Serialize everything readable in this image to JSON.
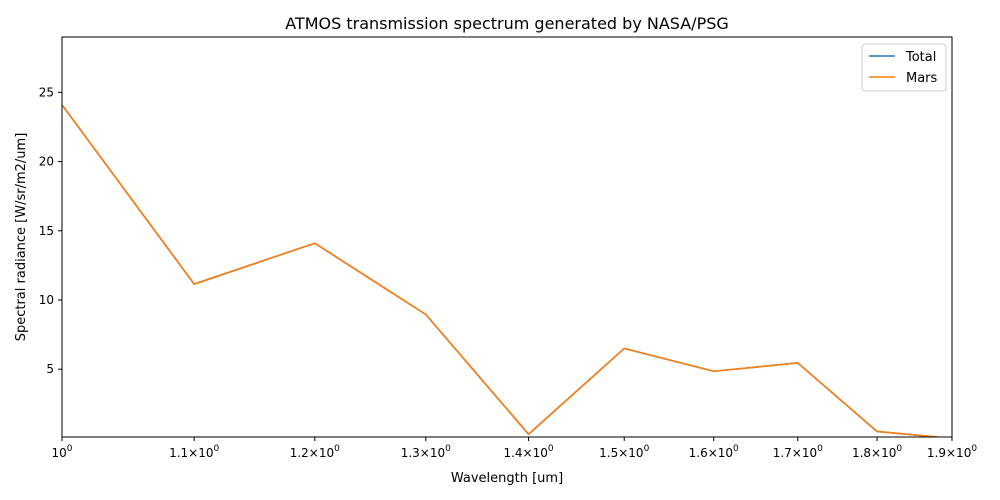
{
  "chart_data": {
    "type": "line",
    "title": "ATMOS transmission spectrum generated by NASA/PSG",
    "xlabel": "Wavelength [um]",
    "ylabel": "Spectral radiance [W/sr/m2/um]",
    "xscale": "log",
    "xlim": [
      1.0,
      1.9
    ],
    "ylim": [
      0.1,
      29
    ],
    "x_ticks": [
      {
        "value": 1.0,
        "mantissa": "",
        "base": "10",
        "exp": "0"
      },
      {
        "value": 1.1,
        "mantissa": "1.1",
        "base": "10",
        "exp": "0"
      },
      {
        "value": 1.2,
        "mantissa": "1.2",
        "base": "10",
        "exp": "0"
      },
      {
        "value": 1.3,
        "mantissa": "1.3",
        "base": "10",
        "exp": "0"
      },
      {
        "value": 1.4,
        "mantissa": "1.4",
        "base": "10",
        "exp": "0"
      },
      {
        "value": 1.5,
        "mantissa": "1.5",
        "base": "10",
        "exp": "0"
      },
      {
        "value": 1.6,
        "mantissa": "1.6",
        "base": "10",
        "exp": "0"
      },
      {
        "value": 1.7,
        "mantissa": "1.7",
        "base": "10",
        "exp": "0"
      },
      {
        "value": 1.8,
        "mantissa": "1.8",
        "base": "10",
        "exp": "0"
      },
      {
        "value": 1.9,
        "mantissa": "1.9",
        "base": "10",
        "exp": "0"
      }
    ],
    "y_ticks": [
      {
        "value": 5,
        "label": "5"
      },
      {
        "value": 10,
        "label": "10"
      },
      {
        "value": 15,
        "label": "15"
      },
      {
        "value": 20,
        "label": "20"
      },
      {
        "value": 25,
        "label": "25"
      }
    ],
    "x": [
      1.0,
      1.1,
      1.2,
      1.3,
      1.4,
      1.5,
      1.6,
      1.7,
      1.8,
      1.88
    ],
    "series": [
      {
        "name": "Total",
        "color": "#1f77b4",
        "values": [
          24.1,
          11.15,
          14.1,
          8.95,
          0.3,
          6.5,
          4.85,
          5.45,
          0.5,
          0.1
        ]
      },
      {
        "name": "Mars",
        "color": "#ff7f0e",
        "values": [
          24.1,
          11.15,
          14.1,
          8.95,
          0.3,
          6.5,
          4.85,
          5.45,
          0.5,
          0.1
        ]
      }
    ],
    "legend": "top-right",
    "grid": false
  }
}
